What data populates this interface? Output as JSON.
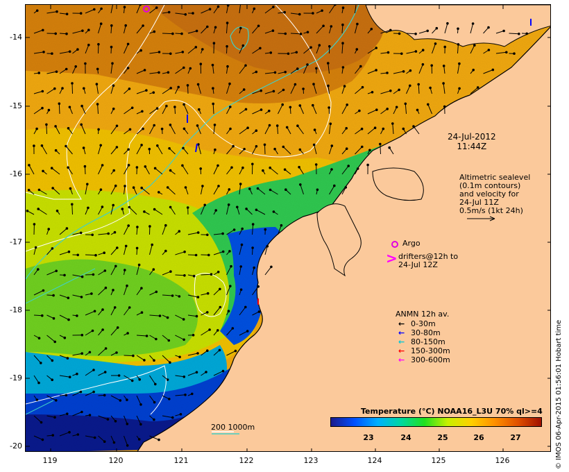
{
  "colors": {
    "land": "#fbc99b",
    "coast": "#000000",
    "contour_200": "#ffffff",
    "contour_1000": "#40d0c8",
    "argo": "#e000e0",
    "drifter": "#ff00ff"
  },
  "axes": {
    "x_ticks": [
      "119",
      "120",
      "121",
      "122",
      "123",
      "124",
      "125",
      "126"
    ],
    "y_ticks": [
      "-14",
      "-15",
      "-16",
      "-17",
      "-18",
      "-19",
      "-20"
    ]
  },
  "timestamp": {
    "date": "24-Jul-2012",
    "time": "11:44Z"
  },
  "altimetry": {
    "line1": "Altimetric sealevel",
    "line2": "(0.1m contours)",
    "line3": "and velocity for",
    "line4": "24-Jul 11Z",
    "line5": "0.5m/s (1kt 24h)"
  },
  "argo": {
    "label": "Argo"
  },
  "drifters": {
    "symbol": ">",
    "line1": "drifters@12h to",
    "line2": "24-Jul 12Z"
  },
  "anmn": {
    "title": "ANMN 12h av.",
    "items": [
      {
        "label": "0-30m",
        "color": "#000000"
      },
      {
        "label": "30-80m",
        "color": "#0000ff"
      },
      {
        "label": "80-150m",
        "color": "#00c8d8"
      },
      {
        "label": "150-300m",
        "color": "#ff0000"
      },
      {
        "label": "300-600m",
        "color": "#ff00ff"
      }
    ]
  },
  "scale": {
    "label": "200  1000m"
  },
  "colorbar": {
    "title": "Temperature (°C) NOAA16_L3U 70% ql>=4",
    "labels": [
      "23",
      "24",
      "25",
      "26",
      "27"
    ],
    "stops": [
      "#1a1a8c",
      "#0050ff",
      "#00b0ff",
      "#00d8a0",
      "#20e020",
      "#c8f000",
      "#ffd000",
      "#ff9000",
      "#e05000",
      "#a01000"
    ]
  },
  "credit": "© IMOS 06-Apr-2015 01:56:01 Hobart time"
}
